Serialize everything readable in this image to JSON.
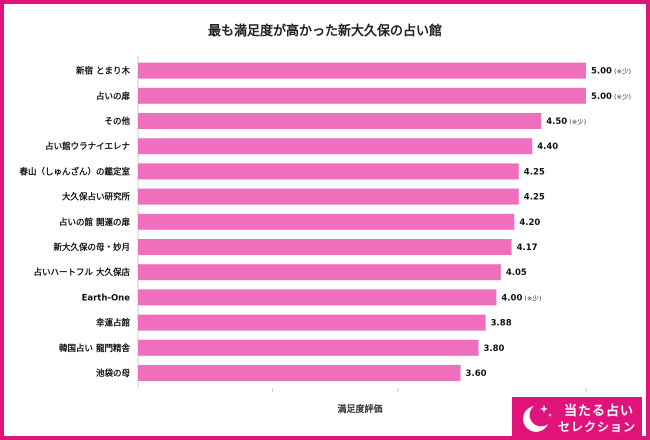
{
  "chart_data": {
    "type": "bar",
    "orientation": "horizontal",
    "title": "最も満足度が高かった新大久保の占い館",
    "xlabel": "満足度評価",
    "ylabel": "",
    "xlim": [
      0,
      5
    ],
    "grid": false,
    "bar_color": "#ef6fbd",
    "categories": [
      "新宿 とまり木",
      "占いの扉",
      "その他",
      "占い館ウラナイエレナ",
      "春山（しゅんざん）の鑑定室",
      "大久保占い研究所",
      "占いの館 開運の扉",
      "新大久保の母・妙月",
      "占いハートフル 大久保店",
      "Earth-One",
      "幸運占館",
      "韓国占い 龍門精舎",
      "池袋の母"
    ],
    "values": [
      5.0,
      5.0,
      4.5,
      4.4,
      4.25,
      4.25,
      4.2,
      4.17,
      4.05,
      4.0,
      3.88,
      3.8,
      3.6
    ],
    "value_labels": [
      "5.00",
      "5.00",
      "4.50",
      "4.40",
      "4.25",
      "4.25",
      "4.20",
      "4.17",
      "4.05",
      "4.00",
      "3.88",
      "3.80",
      "3.60"
    ],
    "annotations": [
      "(※少)",
      "(※少)",
      "(※少)",
      "",
      "",
      "",
      "",
      "",
      "",
      "(※少)",
      "",
      "",
      ""
    ]
  },
  "brand": {
    "line1": "当たる占い",
    "line2": "セレクション",
    "color": "#e0137a"
  }
}
